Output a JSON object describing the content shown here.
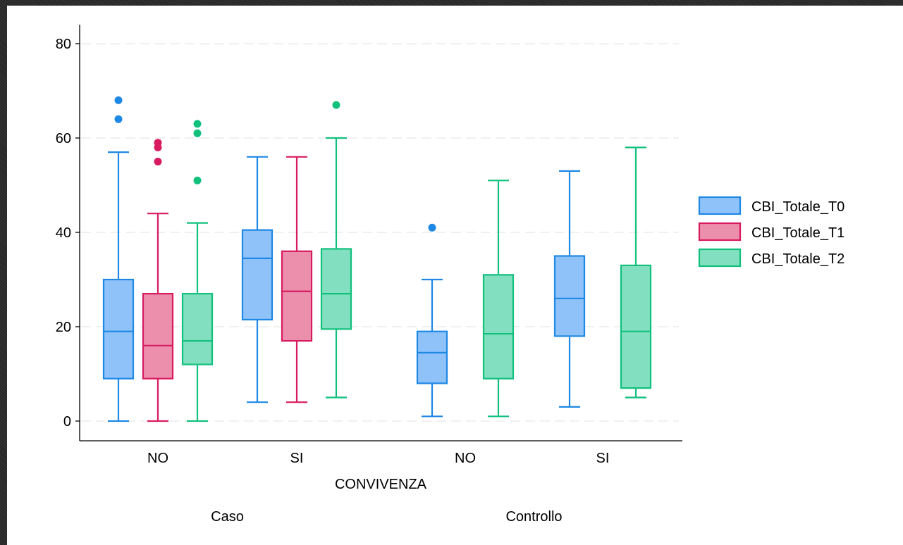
{
  "chart_data": {
    "type": "box",
    "xlabel": "CONVIVENZA",
    "ylim": [
      -4,
      84
    ],
    "y_ticks": [
      0,
      20,
      40,
      60,
      80
    ],
    "grid": true,
    "legend_position": "right",
    "groups": [
      {
        "label": "Caso",
        "categories": [
          {
            "label": "NO",
            "boxes": [
              {
                "series": "CBI_Totale_T0",
                "whisker_low": 0,
                "q1": 9,
                "median": 19,
                "q3": 30,
                "whisker_high": 57,
                "outliers": [
                  64,
                  68
                ]
              },
              {
                "series": "CBI_Totale_T1",
                "whisker_low": 0,
                "q1": 9,
                "median": 16,
                "q3": 27,
                "whisker_high": 44,
                "outliers": [
                  55,
                  58,
                  59
                ]
              },
              {
                "series": "CBI_Totale_T2",
                "whisker_low": 0,
                "q1": 12,
                "median": 17,
                "q3": 27,
                "whisker_high": 42,
                "outliers": [
                  51,
                  61,
                  63
                ]
              }
            ]
          },
          {
            "label": "SI",
            "boxes": [
              {
                "series": "CBI_Totale_T0",
                "whisker_low": 4,
                "q1": 21.5,
                "median": 34.5,
                "q3": 40.5,
                "whisker_high": 56,
                "outliers": []
              },
              {
                "series": "CBI_Totale_T1",
                "whisker_low": 4,
                "q1": 17,
                "median": 27.5,
                "q3": 36,
                "whisker_high": 56,
                "outliers": []
              },
              {
                "series": "CBI_Totale_T2",
                "whisker_low": 5,
                "q1": 19.5,
                "median": 27,
                "q3": 36.5,
                "whisker_high": 60,
                "outliers": [
                  67
                ]
              }
            ]
          }
        ]
      },
      {
        "label": "Controllo",
        "categories": [
          {
            "label": "NO",
            "boxes": [
              {
                "series": "CBI_Totale_T0",
                "whisker_low": 1,
                "q1": 8,
                "median": 14.5,
                "q3": 19,
                "whisker_high": 30,
                "outliers": [
                  41
                ]
              },
              {
                "series": "CBI_Totale_T2",
                "whisker_low": 1,
                "q1": 9,
                "median": 18.5,
                "q3": 31,
                "whisker_high": 51,
                "outliers": []
              }
            ]
          },
          {
            "label": "SI",
            "boxes": [
              {
                "series": "CBI_Totale_T0",
                "whisker_low": 3,
                "q1": 18,
                "median": 26,
                "q3": 35,
                "whisker_high": 53,
                "outliers": []
              },
              {
                "series": "CBI_Totale_T2",
                "whisker_low": 5,
                "q1": 7,
                "median": 19,
                "q3": 33,
                "whisker_high": 58,
                "outliers": []
              }
            ]
          }
        ]
      }
    ],
    "legend": [
      {
        "name": "CBI_Totale_T0",
        "stroke": "#1e88e5",
        "fill": "#90c2fa"
      },
      {
        "name": "CBI_Totale_T1",
        "stroke": "#d81b60",
        "fill": "#ec8fac"
      },
      {
        "name": "CBI_Totale_T2",
        "stroke": "#12c07e",
        "fill": "#82e0c0"
      }
    ]
  }
}
